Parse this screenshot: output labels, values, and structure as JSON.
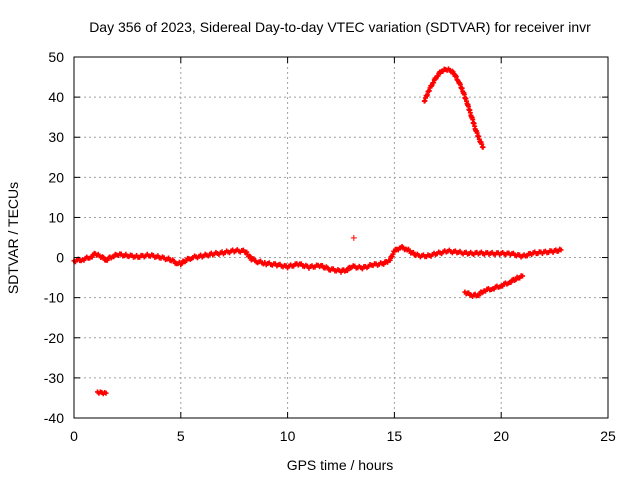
{
  "chart_data": {
    "type": "scatter",
    "title": "Day 356 of 2023, Sidereal Day-to-day VTEC variation (SDTVAR) for receiver invr",
    "xlabel": "GPS time / hours",
    "ylabel": "SDTVAR / TECUs",
    "xlim": [
      0,
      25
    ],
    "ylim": [
      -40,
      50
    ],
    "x_ticks": [
      0,
      5,
      10,
      15,
      20,
      25
    ],
    "x_tick_labels": [
      "0",
      "5",
      "10",
      "15",
      "20",
      "25"
    ],
    "y_ticks": [
      -40,
      -30,
      -20,
      -10,
      0,
      10,
      20,
      30,
      40,
      50
    ],
    "y_tick_labels": [
      "-40",
      "-30",
      "-20",
      "-10",
      "0",
      "10",
      "20",
      "30",
      "40",
      "50"
    ],
    "grid": true,
    "marker": "+",
    "colors": {
      "series": "#ff0000",
      "grid": "#a0a0a0",
      "axis": "#000000"
    },
    "series": [
      {
        "name": "main",
        "x": [
          0.0,
          0.4,
          0.8,
          1.0,
          1.2,
          1.5,
          1.8,
          2.0,
          2.5,
          3.0,
          3.5,
          4.0,
          4.5,
          4.8,
          5.0,
          5.2,
          5.5,
          6.0,
          6.5,
          7.0,
          7.5,
          8.0,
          8.3,
          8.6,
          9.0,
          9.5,
          10.0,
          10.5,
          11.0,
          11.5,
          12.0,
          12.5,
          12.8,
          13.0,
          13.5,
          14.0,
          14.5,
          14.8,
          15.0,
          15.3,
          15.6,
          16.0,
          16.5,
          17.0,
          17.5,
          18.0,
          18.5,
          19.0,
          19.5,
          20.0,
          20.5,
          21.0,
          21.5,
          22.0,
          22.5,
          22.8
        ],
        "y": [
          -0.8,
          -0.5,
          0.2,
          1.0,
          0.5,
          -0.6,
          0.3,
          0.8,
          0.5,
          0.2,
          0.6,
          0.1,
          -0.5,
          -1.3,
          -1.5,
          -0.8,
          0.0,
          0.4,
          0.9,
          1.2,
          1.7,
          1.6,
          -0.3,
          -1.0,
          -1.5,
          -1.8,
          -2.3,
          -1.6,
          -2.4,
          -2.0,
          -2.9,
          -3.4,
          -3.0,
          -2.2,
          -2.6,
          -1.8,
          -1.5,
          -0.5,
          1.6,
          2.6,
          2.0,
          0.6,
          0.3,
          1.0,
          1.6,
          1.3,
          1.0,
          1.1,
          1.0,
          1.0,
          0.9,
          0.3,
          1.1,
          1.3,
          1.6,
          1.9
        ]
      },
      {
        "name": "upper arc",
        "x": [
          16.4,
          16.6,
          16.8,
          17.0,
          17.2,
          17.4,
          17.6,
          17.8,
          18.0,
          18.2,
          18.4,
          18.6,
          18.8,
          19.0,
          19.15
        ],
        "y": [
          39.0,
          41.5,
          43.6,
          45.3,
          46.5,
          47.0,
          46.8,
          45.8,
          44.0,
          41.6,
          38.6,
          35.4,
          32.0,
          29.2,
          27.5
        ]
      },
      {
        "name": "lower arc",
        "x": [
          18.3,
          18.6,
          18.9,
          19.2,
          19.6,
          20.0,
          20.4,
          20.8,
          21.0
        ],
        "y": [
          -8.6,
          -9.4,
          -9.4,
          -8.2,
          -7.7,
          -7.0,
          -6.1,
          -5.0,
          -4.6
        ]
      },
      {
        "name": "early cluster",
        "x": [
          1.1,
          1.3,
          1.5
        ],
        "y": [
          -33.5,
          -33.6,
          -33.8
        ]
      },
      {
        "name": "isolated point",
        "x": [
          13.1
        ],
        "y": [
          4.9
        ]
      }
    ]
  }
}
